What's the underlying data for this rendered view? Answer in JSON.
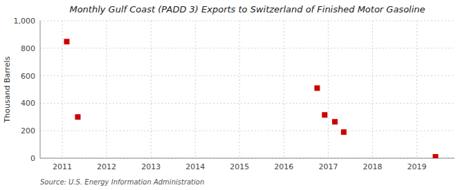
{
  "chart_data": {
    "type": "scatter",
    "title": "Monthly Gulf Coast (PADD 3) Exports to Switzerland of Finished Motor Gasoline",
    "ylabel": "Thousand Barrels",
    "source": "Source: U.S. Energy Information Administration",
    "x": [
      2011.1,
      2011.35,
      2016.75,
      2016.92,
      2017.15,
      2017.35,
      2019.42
    ],
    "values": [
      848,
      300,
      510,
      315,
      265,
      190,
      10
    ],
    "color": "#cc0000",
    "marker": "square",
    "xlim": [
      2010.5,
      2019.85
    ],
    "xticks": [
      2011,
      2012,
      2013,
      2014,
      2015,
      2016,
      2017,
      2018,
      2019
    ],
    "ylim": [
      0,
      1000
    ],
    "yticks": [
      0,
      200,
      400,
      600,
      800,
      {
        "value": 1000,
        "label": "1,000"
      }
    ],
    "grid": true
  }
}
